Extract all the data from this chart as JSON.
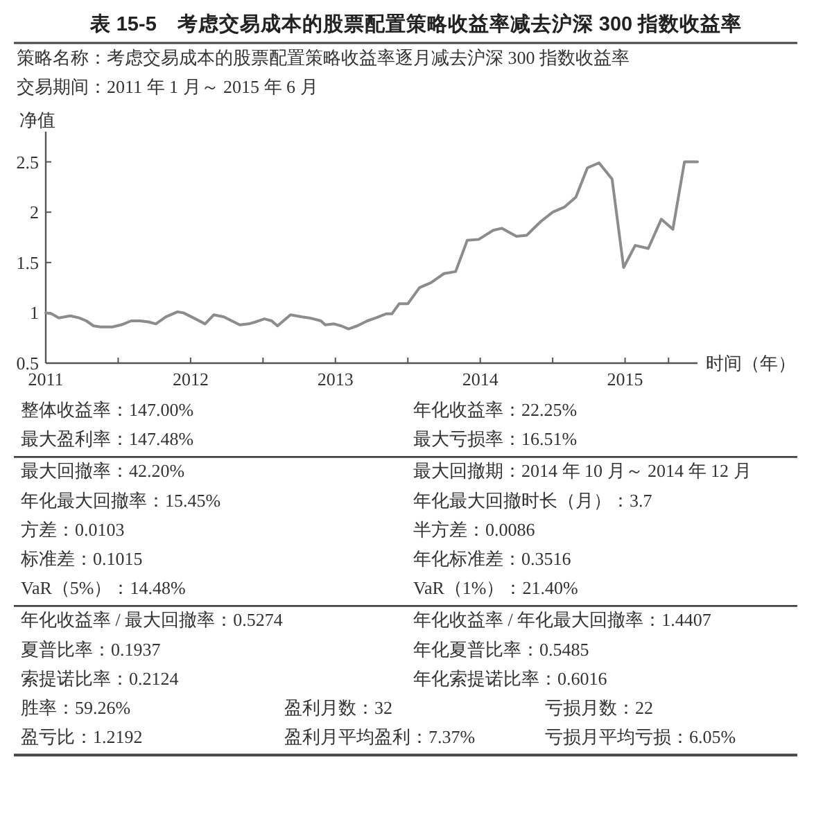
{
  "chart_data": {
    "type": "line",
    "title": "表 15-5　考虑交易成本的股票配置策略收益率减去沪深 300 指数收益率",
    "subtitle": "策略名称：考虑交易成本的股票配置策略收益率逐月减去沪深 300 指数收益率",
    "xlabel": "时间（年）",
    "ylabel": "净值",
    "x": [
      2011.0,
      2011.04,
      2011.09,
      2011.17,
      2011.23,
      2011.28,
      2011.33,
      2011.38,
      2011.46,
      2011.52,
      2011.59,
      2011.65,
      2011.71,
      2011.76,
      2011.83,
      2011.91,
      2011.95,
      2012.02,
      2012.1,
      2012.16,
      2012.23,
      2012.27,
      2012.34,
      2012.4,
      2012.45,
      2012.51,
      2012.56,
      2012.6,
      2012.69,
      2012.77,
      2012.82,
      2012.9,
      2012.93,
      2012.99,
      2013.04,
      2013.09,
      2013.15,
      2013.22,
      2013.28,
      2013.35,
      2013.39,
      2013.44,
      2013.5,
      2013.58,
      2013.66,
      2013.75,
      2013.83,
      2013.91,
      2013.99,
      2014.09,
      2014.15,
      2014.25,
      2014.32,
      2014.42,
      2014.5,
      2014.58,
      2014.66,
      2014.74,
      2014.82,
      2014.91,
      2014.99,
      2015.07,
      2015.16,
      2015.25,
      2015.33,
      2015.41,
      2015.5
    ],
    "series": [
      {
        "color": "#8c8c8c",
        "values": [
          1.0,
          0.99,
          0.95,
          0.97,
          0.95,
          0.92,
          0.87,
          0.86,
          0.86,
          0.88,
          0.92,
          0.92,
          0.91,
          0.89,
          0.96,
          1.01,
          1.0,
          0.95,
          0.89,
          0.98,
          0.96,
          0.93,
          0.88,
          0.89,
          0.91,
          0.94,
          0.92,
          0.87,
          0.98,
          0.96,
          0.95,
          0.92,
          0.88,
          0.89,
          0.87,
          0.84,
          0.87,
          0.92,
          0.95,
          0.99,
          0.99,
          1.09,
          1.09,
          1.25,
          1.3,
          1.39,
          1.41,
          1.72,
          1.73,
          1.82,
          1.84,
          1.76,
          1.77,
          1.91,
          2.0,
          2.05,
          2.15,
          2.44,
          2.49,
          2.33,
          1.45,
          1.67,
          1.64,
          1.93,
          1.83,
          2.5,
          2.5
        ]
      }
    ],
    "xlim": [
      2011,
      2015.5
    ],
    "ylim": [
      0.5,
      2.8
    ],
    "xticks": [
      2011,
      {
        "value": 2011.5,
        "label": null
      },
      2012,
      {
        "value": 2012.5,
        "label": null
      },
      2013,
      {
        "value": 2013.5,
        "label": null
      },
      2014,
      {
        "value": 2014.5,
        "label": null
      },
      2015,
      {
        "value": 2015.3,
        "label": null
      }
    ],
    "yticks": [
      0.5,
      1,
      1.5,
      2,
      2.5
    ],
    "annotations": [
      "交易期间：2011 年 1 月～ 2015 年 6 月",
      "整体收益率：147.00%",
      "年化收益率：22.25%",
      "最大盈利率：147.48%",
      "最大亏损率：16.51%",
      "最大回撤率：42.20%",
      "最大回撤期：2014 年 10 月～ 2014 年 12 月",
      "年化最大回撤率：15.45%",
      "年化最大回撤时长（月）：3.7",
      "方差：0.0103",
      "半方差：0.0086",
      "标准差：0.1015",
      "年化标准差：0.3516",
      "VaR（5%）：14.48%",
      "VaR（1%）：21.40%",
      "年化收益率 / 最大回撤率：0.5274",
      "年化收益率 / 年化最大回撤率：1.4407",
      "夏普比率：0.1937",
      "年化夏普比率：0.5485",
      "索提诺比率：0.2124",
      "年化索提诺比率：0.6016",
      "胜率：59.26%",
      "盈利月数：32",
      "亏损月数：22",
      "盈亏比：1.2192",
      "盈利月平均盈利：7.37%",
      "亏损月平均亏损：6.05%"
    ]
  }
}
